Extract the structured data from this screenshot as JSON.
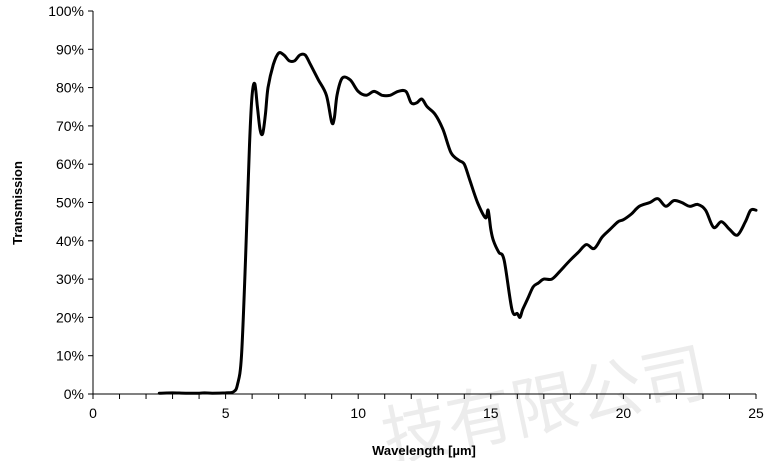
{
  "chart_data": {
    "type": "line",
    "title": "",
    "xlabel": "Wavelength [µm]",
    "ylabel": "Transmission",
    "xlim": [
      0,
      25
    ],
    "ylim": [
      0,
      100
    ],
    "x_ticks": [
      0,
      5,
      10,
      15,
      20,
      25
    ],
    "x_tick_labels": [
      "0",
      "5",
      "10",
      "15",
      "20",
      "25"
    ],
    "y_ticks": [
      0,
      10,
      20,
      30,
      40,
      50,
      60,
      70,
      80,
      90,
      100
    ],
    "y_tick_labels": [
      "0%",
      "10%",
      "20%",
      "30%",
      "40%",
      "50%",
      "60%",
      "70%",
      "80%",
      "90%",
      "100%"
    ],
    "grid": false,
    "legend": "none",
    "line_color": "#000000",
    "series": [
      {
        "x": [
          2.5,
          3.0,
          3.5,
          4.0,
          4.2,
          4.5,
          5.0,
          5.3,
          5.45,
          5.6,
          5.75,
          5.9,
          6.0,
          6.1,
          6.2,
          6.3,
          6.4,
          6.5,
          6.6,
          6.8,
          7.0,
          7.2,
          7.4,
          7.6,
          7.8,
          8.0,
          8.2,
          8.5,
          8.8,
          9.0,
          9.1,
          9.2,
          9.4,
          9.7,
          10.0,
          10.3,
          10.6,
          10.9,
          11.2,
          11.5,
          11.8,
          12.0,
          12.2,
          12.4,
          12.6,
          12.9,
          13.2,
          13.5,
          13.8,
          14.0,
          14.2,
          14.5,
          14.8,
          14.9,
          15.0,
          15.1,
          15.3,
          15.5,
          15.8,
          16.0,
          16.1,
          16.2,
          16.4,
          16.6,
          16.8,
          17.0,
          17.3,
          17.6,
          18.0,
          18.3,
          18.6,
          18.9,
          19.2,
          19.5,
          19.8,
          20.0,
          20.3,
          20.6,
          21.0,
          21.3,
          21.6,
          21.9,
          22.2,
          22.5,
          22.8,
          23.1,
          23.4,
          23.7,
          24.0,
          24.3,
          24.6,
          24.8,
          25.0
        ],
        "y": [
          0.2,
          0.3,
          0.2,
          0.2,
          0.3,
          0.2,
          0.3,
          0.6,
          2.5,
          10,
          35,
          65,
          78,
          81,
          75,
          69,
          68,
          73,
          80,
          86,
          89,
          88.5,
          87,
          87,
          88.5,
          88.5,
          86,
          82,
          78,
          71,
          72,
          78,
          82.5,
          82,
          79,
          78,
          79,
          78,
          78,
          79,
          79,
          76,
          76,
          77,
          75,
          73,
          69,
          63,
          61,
          60,
          56,
          50,
          46,
          48,
          43,
          40,
          37,
          35,
          22,
          21,
          20,
          22,
          25,
          28,
          29,
          30,
          30,
          32,
          35,
          37,
          39,
          38,
          41,
          43,
          45,
          45.5,
          47,
          49,
          50,
          51,
          49,
          50.5,
          50,
          49,
          49.5,
          48,
          43.5,
          45,
          43,
          41.5,
          45,
          48,
          48
        ]
      }
    ]
  },
  "watermark_text": "技有限公司"
}
